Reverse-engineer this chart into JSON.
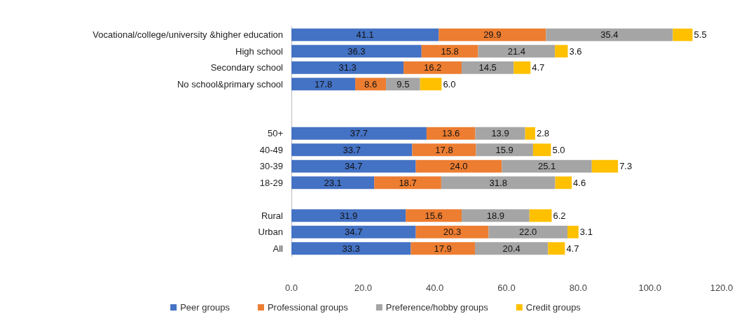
{
  "chart_data": {
    "type": "bar",
    "orientation": "horizontal",
    "stacked": true,
    "grid": false,
    "legend": "bottom",
    "categories": [
      "Vocational/college/university &higher education",
      "High school",
      "Secondary school",
      "No school&primary school",
      null,
      null,
      "50+",
      "40-49",
      "30-39",
      "18-29",
      null,
      "Rural",
      "Urban",
      "All"
    ],
    "series": [
      {
        "name": "Peer groups",
        "color": "#4472c4",
        "values": [
          41.1,
          36.3,
          31.3,
          17.8,
          null,
          null,
          37.7,
          33.7,
          34.7,
          23.1,
          null,
          31.9,
          34.7,
          33.3
        ],
        "value_labels": [
          "41.1",
          "36.3",
          "31.3",
          "17.8",
          null,
          null,
          "37.7",
          "33.7",
          "34.7",
          "23.1",
          null,
          "31.9",
          "34.7",
          "33.3"
        ]
      },
      {
        "name": "Professional groups",
        "color": "#ed7d31",
        "values": [
          29.9,
          15.8,
          16.2,
          8.6,
          null,
          null,
          13.6,
          17.8,
          24.0,
          18.7,
          null,
          15.6,
          20.3,
          17.9
        ],
        "value_labels": [
          "29.9",
          "15.8",
          "16.2",
          "8.6",
          null,
          null,
          "13.6",
          "17.8",
          "24.0",
          "18.7",
          null,
          "15.6",
          "20.3",
          "17.9"
        ]
      },
      {
        "name": "Preference/hobby groups",
        "color": "#a5a5a5",
        "values": [
          35.4,
          21.4,
          14.5,
          9.5,
          null,
          null,
          13.9,
          15.9,
          25.1,
          31.8,
          null,
          18.9,
          22.0,
          20.4
        ],
        "value_labels": [
          "35.4",
          "21.4",
          "14.5",
          "9.5",
          null,
          null,
          "13.9",
          "15.9",
          "25.1",
          "31.8",
          null,
          "18.9",
          "22.0",
          "20.4"
        ]
      },
      {
        "name": "Credit groups",
        "color": "#ffc000",
        "values": [
          5.5,
          3.6,
          4.7,
          6.0,
          null,
          null,
          2.8,
          5.0,
          7.3,
          4.6,
          null,
          6.2,
          3.1,
          4.7
        ],
        "value_labels": [
          "5.5",
          "3.6",
          "4.7",
          "6.0",
          null,
          null,
          "2.8",
          "5.0",
          "7.3",
          "4.6",
          null,
          "6.2",
          "3.1",
          "4.7"
        ]
      }
    ],
    "xlim": [
      0,
      120
    ],
    "xticks": [
      {
        "value": 0,
        "label": "0.0"
      },
      {
        "value": 20,
        "label": "20.0"
      },
      {
        "value": 40,
        "label": "40.0"
      },
      {
        "value": 60,
        "label": "60.0"
      },
      {
        "value": 80,
        "label": "80.0"
      },
      {
        "value": 100,
        "label": "100.0"
      },
      {
        "value": 120,
        "label": "120.0"
      }
    ]
  }
}
